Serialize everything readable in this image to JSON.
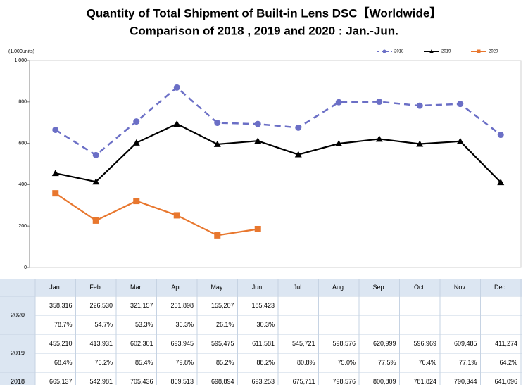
{
  "chart_data": {
    "type": "line",
    "title": "Quantity of Total Shipment of Built-in Lens DSC【Worldwide】",
    "subtitle": "Comparison of 2018 , 2019 and 2020 : Jan.-Jun.",
    "y_label": "(1,000units)",
    "categories": [
      "Jan.",
      "Feb.",
      "Mar.",
      "Apr.",
      "May.",
      "Jun.",
      "Jul.",
      "Aug.",
      "Sep.",
      "Oct.",
      "Nov.",
      "Dec."
    ],
    "ylim": [
      0,
      1000
    ],
    "yticks": [
      0,
      200,
      400,
      600,
      800,
      {
        "value": 1000,
        "label": "1,000"
      }
    ],
    "grid": false,
    "legend": "top-right",
    "series": [
      {
        "name": "2018",
        "color": "#6b6fc6",
        "dash": true,
        "marker": "circle",
        "values": [
          665.137,
          542.981,
          705.436,
          869.513,
          698.894,
          693.253,
          675.711,
          798.576,
          800.809,
          781.824,
          790.344,
          641.096
        ],
        "value_labels": [
          "665,137",
          "542,981",
          "705,436",
          "869,513",
          "698,894",
          "693,253",
          "675,711",
          "798,576",
          "800,809",
          "781,824",
          "790,344",
          "641,096"
        ]
      },
      {
        "name": "2019",
        "color": "#000000",
        "dash": false,
        "marker": "triangle",
        "values": [
          455.21,
          413.931,
          602.301,
          693.945,
          595.475,
          611.581,
          545.721,
          598.576,
          620.999,
          596.969,
          609.485,
          411.274
        ],
        "value_labels": [
          "455,210",
          "413,931",
          "602,301",
          "693,945",
          "595,475",
          "611,581",
          "545,721",
          "598,576",
          "620,999",
          "596,969",
          "609,485",
          "411,274"
        ],
        "ratio_labels": [
          "68.4%",
          "76.2%",
          "85.4%",
          "79.8%",
          "85.2%",
          "88.2%",
          "80.8%",
          "75.0%",
          "77.5%",
          "76.4%",
          "77.1%",
          "64.2%"
        ]
      },
      {
        "name": "2020",
        "color": "#e8772e",
        "dash": false,
        "marker": "square",
        "values": [
          358.316,
          226.53,
          321.157,
          251.898,
          155.207,
          185.423,
          null,
          null,
          null,
          null,
          null,
          null
        ],
        "value_labels": [
          "358,316",
          "226,530",
          "321,157",
          "251,898",
          "155,207",
          "185,423",
          null,
          null,
          null,
          null,
          null,
          null
        ],
        "ratio_labels": [
          "78.7%",
          "54.7%",
          "53.3%",
          "36.3%",
          "26.1%",
          "30.3%",
          null,
          null,
          null,
          null,
          null,
          null
        ]
      }
    ]
  }
}
